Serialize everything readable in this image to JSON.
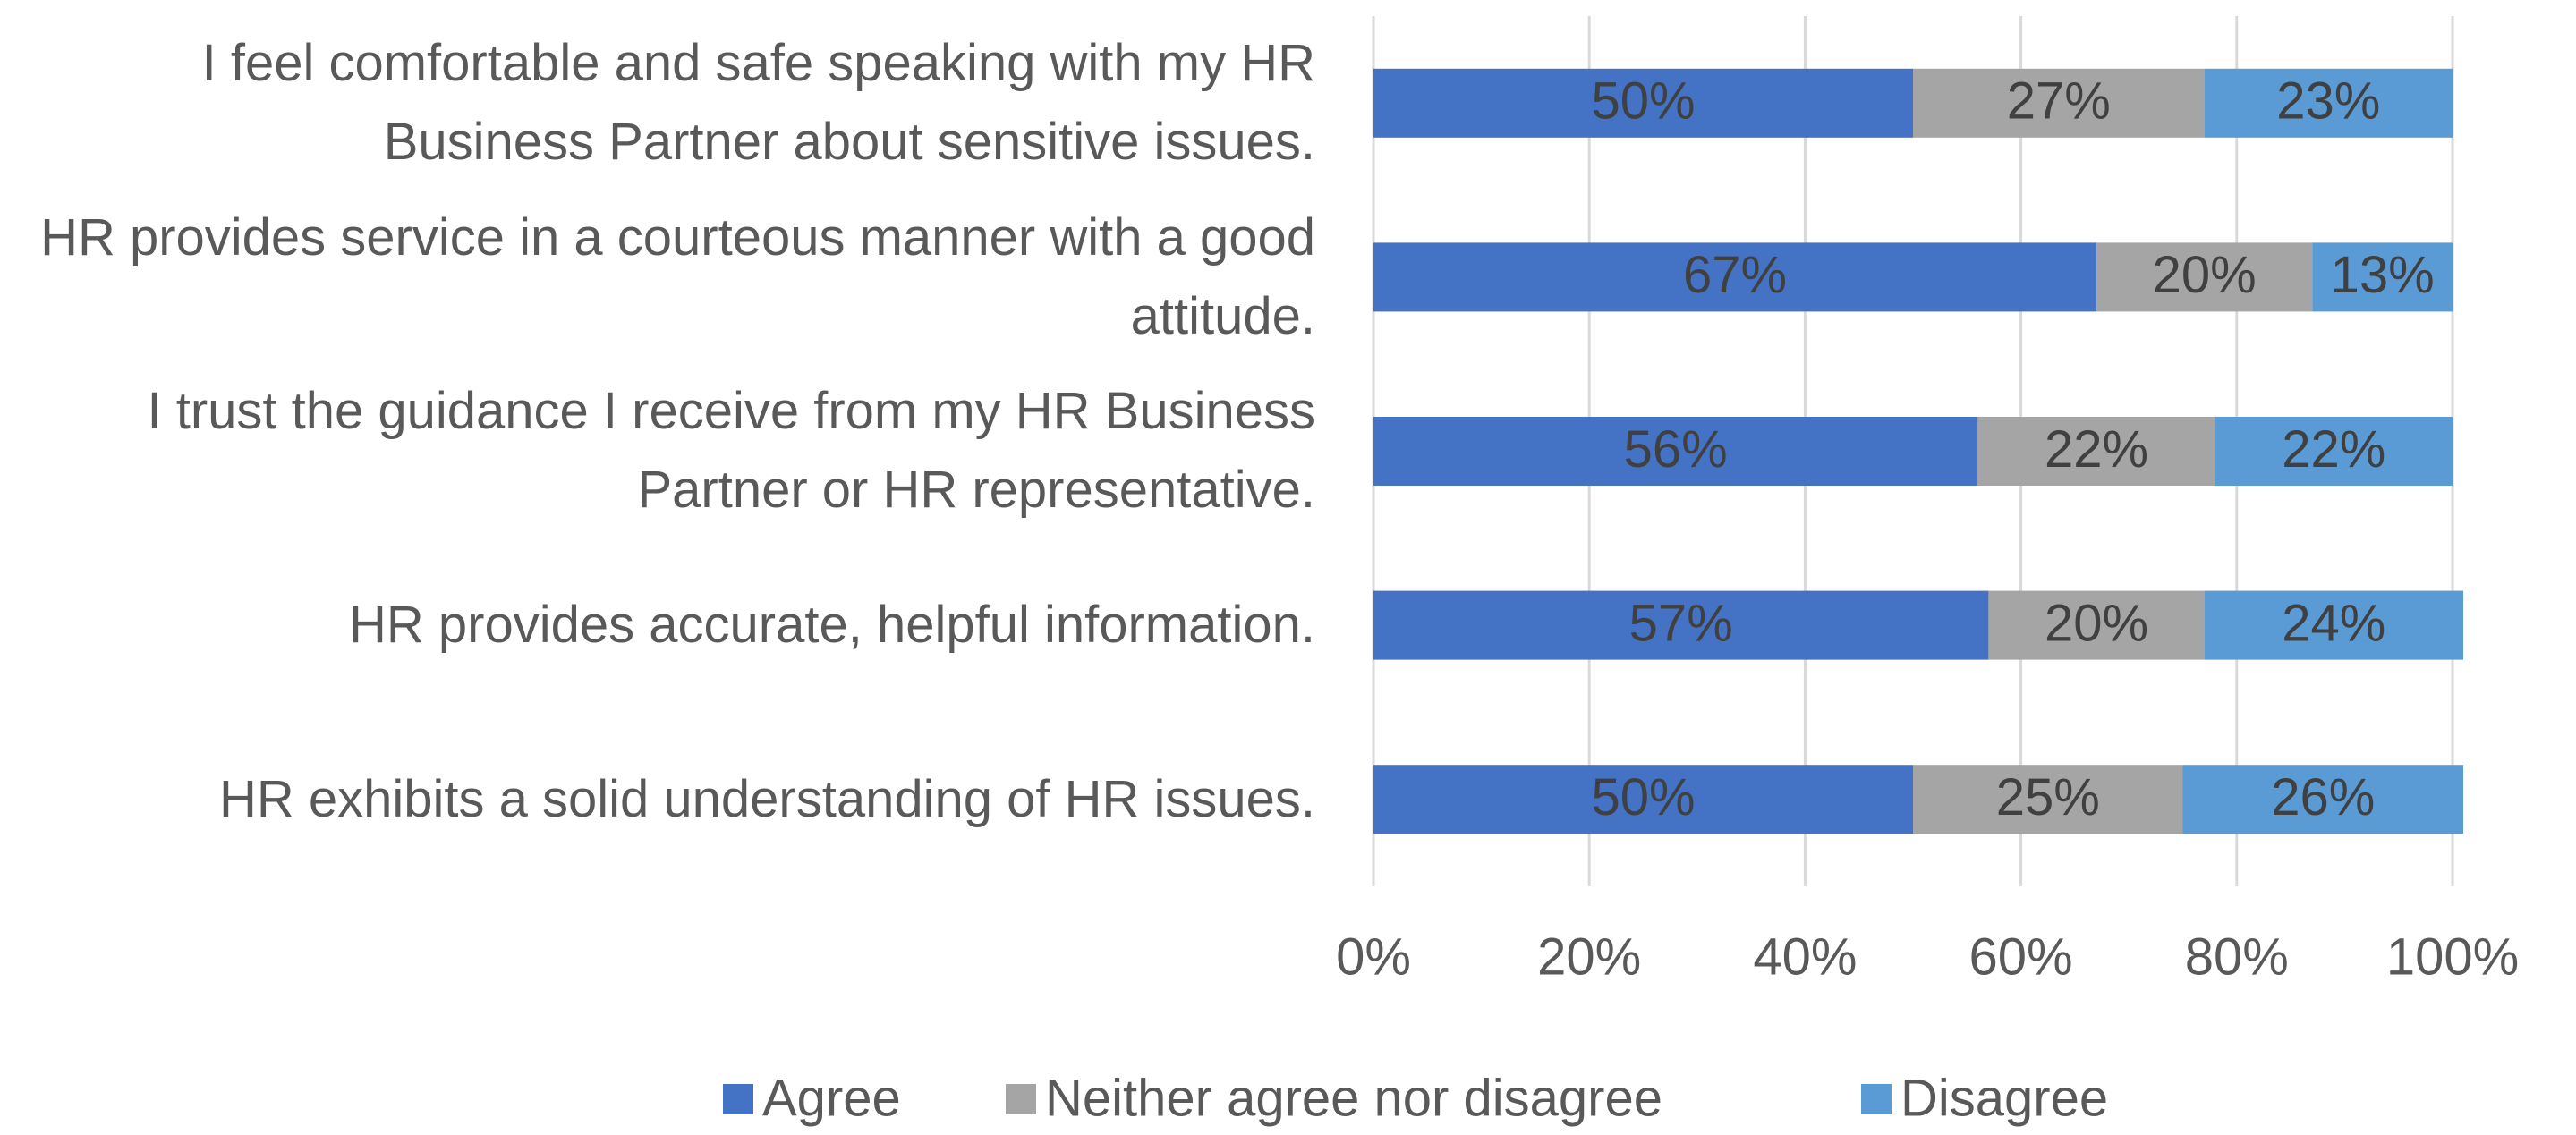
{
  "chart_data": {
    "type": "stacked_barh",
    "categories": [
      "I feel comfortable and safe speaking with my HR Business Partner about sensitive issues.",
      "HR provides service in a courteous manner with a good attitude.",
      "I trust the guidance I receive from my HR Business Partner or HR representative.",
      "HR provides accurate, helpful information.",
      "HR exhibits a solid understanding of HR issues."
    ],
    "series": [
      {
        "name": "Agree",
        "color": "#4472c4",
        "values": [
          50,
          67,
          56,
          57,
          50
        ],
        "value_labels": [
          "50%",
          "67%",
          "56%",
          "57%",
          "50%"
        ]
      },
      {
        "name": "Neither agree nor disagree",
        "color": "#a5a5a5",
        "values": [
          27,
          20,
          22,
          20,
          25
        ],
        "value_labels": [
          "27%",
          "20%",
          "22%",
          "20%",
          "25%"
        ]
      },
      {
        "name": "Disagree",
        "color": "#5b9bd5",
        "values": [
          23,
          13,
          22,
          24,
          26
        ],
        "value_labels": [
          "23%",
          "13%",
          "22%",
          "24%",
          "26%"
        ]
      }
    ],
    "xlim": [
      0,
      100
    ],
    "xticks": [
      {
        "value": 0,
        "label": "0%"
      },
      {
        "value": 20,
        "label": "20%"
      },
      {
        "value": 40,
        "label": "40%"
      },
      {
        "value": 60,
        "label": "60%"
      },
      {
        "value": 80,
        "label": "80%"
      },
      {
        "value": 100,
        "label": "100%"
      }
    ],
    "grid": true,
    "legend": "bottom"
  }
}
